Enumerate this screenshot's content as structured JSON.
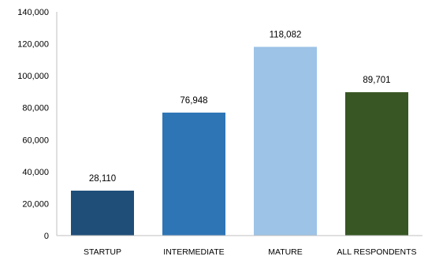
{
  "chart_data": {
    "type": "bar",
    "title": "",
    "xlabel": "",
    "ylabel": "",
    "categories": [
      "STARTUP",
      "INTERMEDIATE",
      "MATURE",
      "ALL RESPONDENTS"
    ],
    "values": [
      28110,
      76948,
      118082,
      89701
    ],
    "value_labels": [
      "28,110",
      "76,948",
      "118,082",
      "89,701"
    ],
    "colors": [
      "#1f4e79",
      "#2e75b6",
      "#9dc3e6",
      "#375623"
    ],
    "ylim": [
      0,
      140000
    ],
    "yticks": [
      0,
      20000,
      40000,
      60000,
      80000,
      100000,
      120000,
      140000
    ],
    "ytick_labels": [
      "0",
      "20,000",
      "40,000",
      "60,000",
      "80,000",
      "100,000",
      "120,000",
      "140,000"
    ],
    "grid": false,
    "legend": "none"
  }
}
